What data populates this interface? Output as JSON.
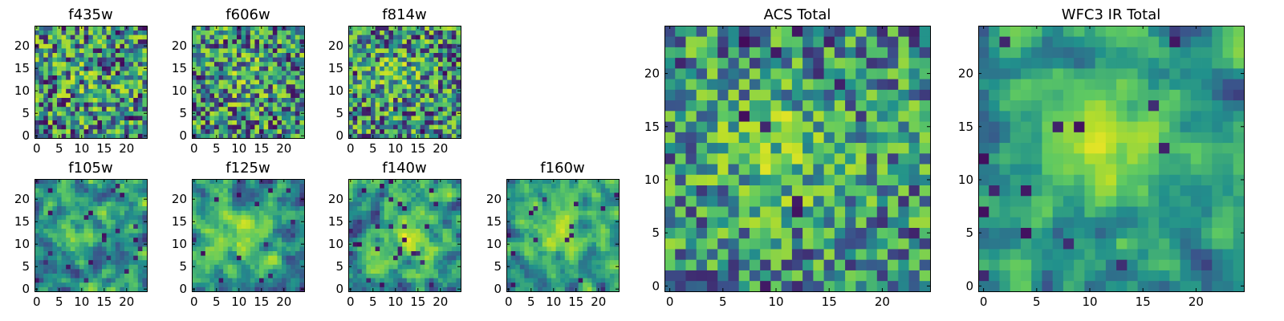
{
  "figure": {
    "colormap": "viridis",
    "colormap_stops": [
      "#440154",
      "#3b528b",
      "#21918c",
      "#5ec962",
      "#b8de29",
      "#fde725"
    ]
  },
  "chart_data": [
    {
      "type": "heatmap",
      "title": "f435w",
      "grid_size": 25,
      "xlim": [
        -0.5,
        24.5
      ],
      "ylim": [
        -0.5,
        24.5
      ],
      "xticks": [
        0,
        5,
        10,
        15,
        20
      ],
      "xtick_labels": [
        "0",
        "5",
        "10",
        "15",
        "20"
      ],
      "yticks": [
        0,
        5,
        10,
        15,
        20
      ],
      "ytick_labels": [
        "0",
        "5",
        "10",
        "15",
        "20"
      ],
      "seed": 11,
      "peak": [
        11,
        12
      ],
      "peak_strength": 0.1,
      "noise": 0.52,
      "smooth": 0
    },
    {
      "type": "heatmap",
      "title": "f606w",
      "grid_size": 25,
      "xlim": [
        -0.5,
        24.5
      ],
      "ylim": [
        -0.5,
        24.5
      ],
      "xticks": [
        0,
        5,
        10,
        15,
        20
      ],
      "xtick_labels": [
        "0",
        "5",
        "10",
        "15",
        "20"
      ],
      "yticks": [
        0,
        5,
        10,
        15,
        20
      ],
      "ytick_labels": [
        "0",
        "5",
        "10",
        "15",
        "20"
      ],
      "seed": 23,
      "peak": [
        11,
        13
      ],
      "peak_strength": 0.14,
      "noise": 0.5,
      "smooth": 0
    },
    {
      "type": "heatmap",
      "title": "f814w",
      "grid_size": 25,
      "xlim": [
        -0.5,
        24.5
      ],
      "ylim": [
        -0.5,
        24.5
      ],
      "xticks": [
        0,
        5,
        10,
        15,
        20
      ],
      "xtick_labels": [
        "0",
        "5",
        "10",
        "15",
        "20"
      ],
      "yticks": [
        0,
        5,
        10,
        15,
        20
      ],
      "ytick_labels": [
        "0",
        "5",
        "10",
        "15",
        "20"
      ],
      "seed": 37,
      "peak": [
        10,
        14
      ],
      "peak_strength": 0.16,
      "noise": 0.5,
      "smooth": 0
    },
    {
      "type": "heatmap",
      "title": "f105w",
      "grid_size": 25,
      "xlim": [
        -0.5,
        24.5
      ],
      "ylim": [
        -0.5,
        24.5
      ],
      "xticks": [
        0,
        5,
        10,
        15,
        20
      ],
      "xtick_labels": [
        "0",
        "5",
        "10",
        "15",
        "20"
      ],
      "yticks": [
        0,
        5,
        10,
        15,
        20
      ],
      "ytick_labels": [
        "0",
        "5",
        "10",
        "15",
        "20"
      ],
      "seed": 41,
      "peak": [
        10,
        14
      ],
      "peak_strength": 0.2,
      "noise": 0.46,
      "smooth": 1
    },
    {
      "type": "heatmap",
      "title": "f125w",
      "grid_size": 25,
      "xlim": [
        -0.5,
        24.5
      ],
      "ylim": [
        -0.5,
        24.5
      ],
      "xticks": [
        0,
        5,
        10,
        15,
        20
      ],
      "xtick_labels": [
        "0",
        "5",
        "10",
        "15",
        "20"
      ],
      "yticks": [
        0,
        5,
        10,
        15,
        20
      ],
      "ytick_labels": [
        "0",
        "5",
        "10",
        "15",
        "20"
      ],
      "seed": 53,
      "peak": [
        11,
        12
      ],
      "peak_strength": 0.26,
      "noise": 0.42,
      "smooth": 1
    },
    {
      "type": "heatmap",
      "title": "f140w",
      "grid_size": 25,
      "xlim": [
        -0.5,
        24.5
      ],
      "ylim": [
        -0.5,
        24.5
      ],
      "xticks": [
        0,
        5,
        10,
        15,
        20
      ],
      "xtick_labels": [
        "0",
        "5",
        "10",
        "15",
        "20"
      ],
      "yticks": [
        0,
        5,
        10,
        15,
        20
      ],
      "ytick_labels": [
        "0",
        "5",
        "10",
        "15",
        "20"
      ],
      "seed": 67,
      "peak": [
        13,
        12
      ],
      "peak_strength": 0.28,
      "noise": 0.44,
      "smooth": 1
    },
    {
      "type": "heatmap",
      "title": "f160w",
      "grid_size": 25,
      "xlim": [
        -0.5,
        24.5
      ],
      "ylim": [
        -0.5,
        24.5
      ],
      "xticks": [
        0,
        5,
        10,
        15,
        20
      ],
      "xtick_labels": [
        "0",
        "5",
        "10",
        "15",
        "20"
      ],
      "yticks": [
        0,
        5,
        10,
        15,
        20
      ],
      "ytick_labels": [
        "0",
        "5",
        "10",
        "15",
        "20"
      ],
      "seed": 79,
      "peak": [
        11,
        13
      ],
      "peak_strength": 0.34,
      "noise": 0.4,
      "smooth": 1
    },
    {
      "type": "heatmap",
      "title": "ACS Total",
      "grid_size": 25,
      "xlim": [
        -0.5,
        24.5
      ],
      "ylim": [
        -0.5,
        24.5
      ],
      "xticks": [
        0,
        5,
        10,
        15,
        20
      ],
      "xtick_labels": [
        "0",
        "5",
        "10",
        "15",
        "20"
      ],
      "yticks": [
        0,
        5,
        10,
        15,
        20
      ],
      "ytick_labels": [
        "0",
        "5",
        "10",
        "15",
        "20"
      ],
      "seed": 97,
      "peak": [
        10,
        13
      ],
      "peak_strength": 0.24,
      "noise": 0.4,
      "smooth": 0
    },
    {
      "type": "heatmap",
      "title": "WFC3 IR Total",
      "grid_size": 25,
      "xlim": [
        -0.5,
        24.5
      ],
      "ylim": [
        -0.5,
        24.5
      ],
      "xticks": [
        0,
        5,
        10,
        15,
        20
      ],
      "xtick_labels": [
        "0",
        "5",
        "10",
        "15",
        "20"
      ],
      "yticks": [
        0,
        5,
        10,
        15,
        20
      ],
      "ytick_labels": [
        "0",
        "5",
        "10",
        "15",
        "20"
      ],
      "seed": 113,
      "peak": [
        11,
        14
      ],
      "peak_strength": 0.36,
      "noise": 0.34,
      "smooth": 1
    }
  ]
}
